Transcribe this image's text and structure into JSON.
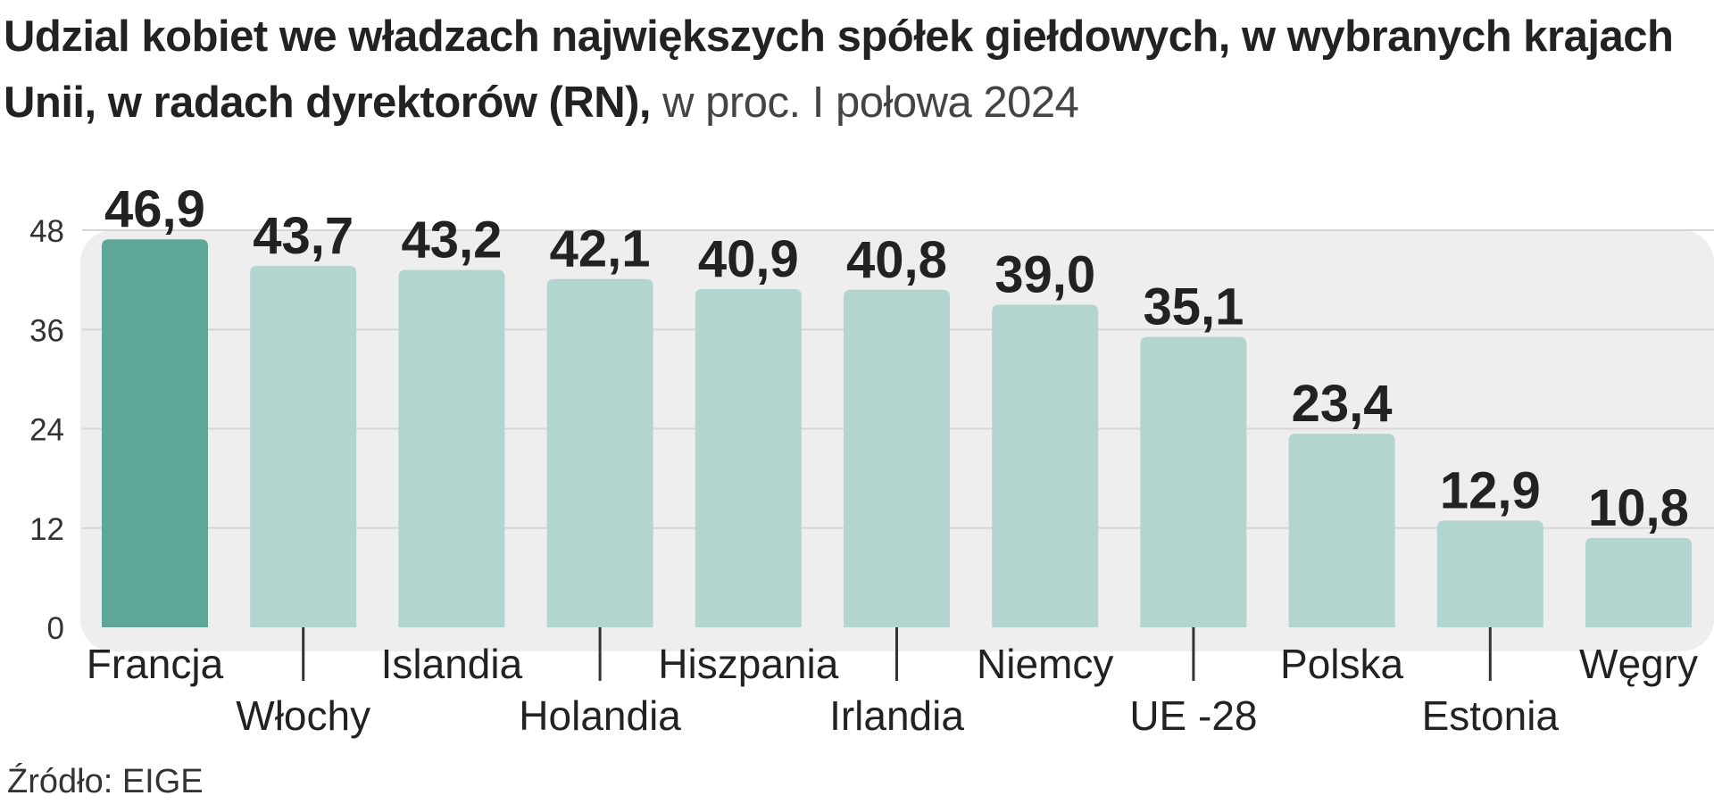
{
  "title": {
    "bold": "Udzial kobiet we władzach największych spółek giełdowych, w wybranych krajach Unii, w radach dyrektorów (RN),",
    "light": " w proc. I połowa 2024"
  },
  "source": "Źródło: EIGE",
  "colors": {
    "highlight": "#5ea797",
    "bar": "#b3d5cf",
    "panel": "#eeeeee",
    "grid": "#d6d6d6"
  },
  "chart_data": {
    "type": "bar",
    "categories": [
      "Francja",
      "Włochy",
      "Islandia",
      "Holandia",
      "Hiszpania",
      "Irlandia",
      "Niemcy",
      "UE -28",
      "Polska",
      "Estonia",
      "Węgry"
    ],
    "values": [
      46.9,
      43.7,
      43.2,
      42.1,
      40.9,
      40.8,
      39.0,
      35.1,
      23.4,
      12.9,
      10.8
    ],
    "value_labels": [
      "46,9",
      "43,7",
      "43,2",
      "42,1",
      "40,9",
      "40,8",
      "39,0",
      "35,1",
      "23,4",
      "12,9",
      "10,8"
    ],
    "highlighted": "Francja",
    "yticks": [
      0,
      12,
      24,
      36,
      48
    ],
    "ylim": [
      0,
      48
    ],
    "grid": true,
    "title": "Udzial kobiet we władzach największych spółek giełdowych, w wybranych krajach Unii, w radach dyrektorów (RN), w proc. I połowa 2024"
  }
}
